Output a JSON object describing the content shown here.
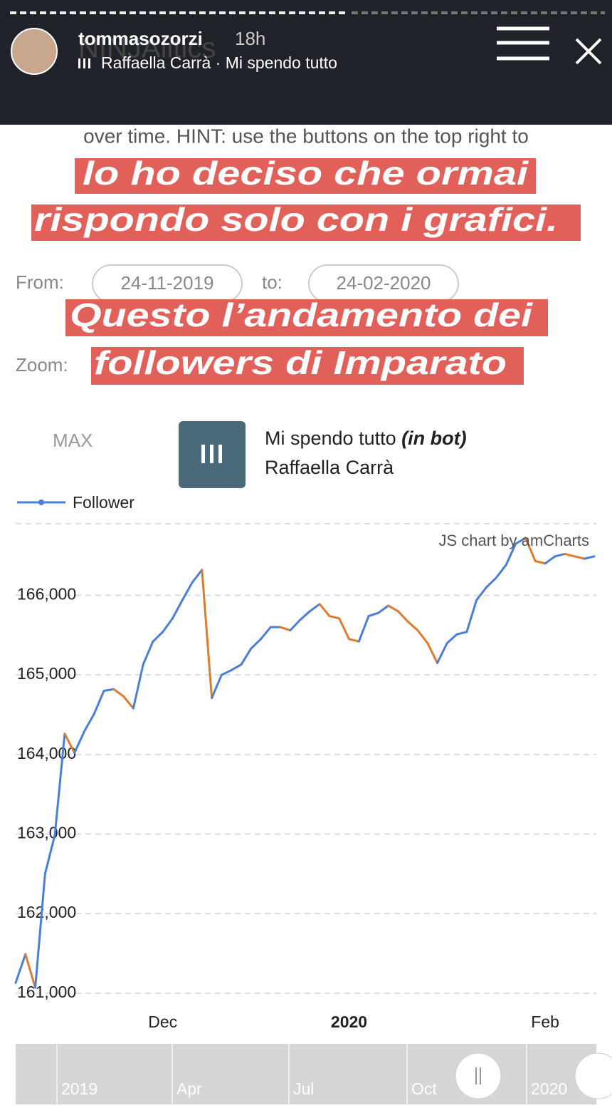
{
  "story": {
    "username": "tommasozorzi",
    "time": "18h",
    "music": "Raffaella Carrà · Mi spendo tutto",
    "brand": "NINJAlitics"
  },
  "page": {
    "hint": "over time. HINT: use the buttons on the top right to",
    "from_label": "From:",
    "from_date": "24-11-2019",
    "to_label": "to:",
    "to_date": "24-02-2020",
    "zoom_label": "Zoom:",
    "zoom_option": "MAX",
    "watermark": "JS chart by amCharts"
  },
  "captions": [
    "lo ho deciso che ormai",
    "rispondo solo con i grafici.",
    "Questo l’andamento dei",
    "followers di Imparato"
  ],
  "sticker": {
    "song": "Mi spendo tutto",
    "tag": "(in bot)",
    "artist": "Raffaella Carrà"
  },
  "navigator_labels": [
    "2019",
    "Apr",
    "Jul",
    "Oct",
    "2020"
  ],
  "chart_data": {
    "type": "line",
    "categories": [
      null,
      null,
      null,
      null,
      null,
      null,
      null,
      null,
      null,
      null,
      null,
      null,
      null,
      null,
      null,
      "Dec",
      null,
      null,
      null,
      null,
      null,
      null,
      null,
      null,
      null,
      null,
      null,
      null,
      null,
      null,
      null,
      null,
      null,
      null,
      "2020",
      null,
      null,
      null,
      null,
      null,
      null,
      null,
      null,
      null,
      null,
      null,
      null,
      null,
      null,
      null,
      null,
      null,
      null,
      null,
      "Feb",
      null,
      null,
      null,
      null,
      null
    ],
    "series": [
      {
        "name": "Follower",
        "color": "#4a7fd9",
        "down_color": "#e07b2c",
        "values": [
          161130,
          161490,
          161070,
          162500,
          162990,
          164260,
          164020,
          164290,
          164510,
          164800,
          164820,
          164730,
          164580,
          165130,
          165420,
          165540,
          165710,
          165940,
          166160,
          166320,
          164710,
          165000,
          165060,
          165130,
          165330,
          165450,
          165600,
          165600,
          165560,
          165690,
          165800,
          165890,
          165740,
          165710,
          165450,
          165420,
          165740,
          165780,
          165870,
          165800,
          165670,
          165560,
          165400,
          165150,
          165400,
          165510,
          165540,
          165940,
          166100,
          166220,
          166380,
          166650,
          166720,
          166430,
          166400,
          166490,
          166520,
          166490,
          166460,
          166490
        ]
      }
    ],
    "ylim": [
      160900,
      166900
    ],
    "yticks": [
      {
        "value": 161000,
        "label": "161,000"
      },
      {
        "value": 162000,
        "label": "162,000"
      },
      {
        "value": 163000,
        "label": "163,000"
      },
      {
        "value": 164000,
        "label": "164,000"
      },
      {
        "value": 165000,
        "label": "165,000"
      },
      {
        "value": 166000,
        "label": "166,000"
      }
    ],
    "grid": true,
    "legend": "top-left"
  }
}
